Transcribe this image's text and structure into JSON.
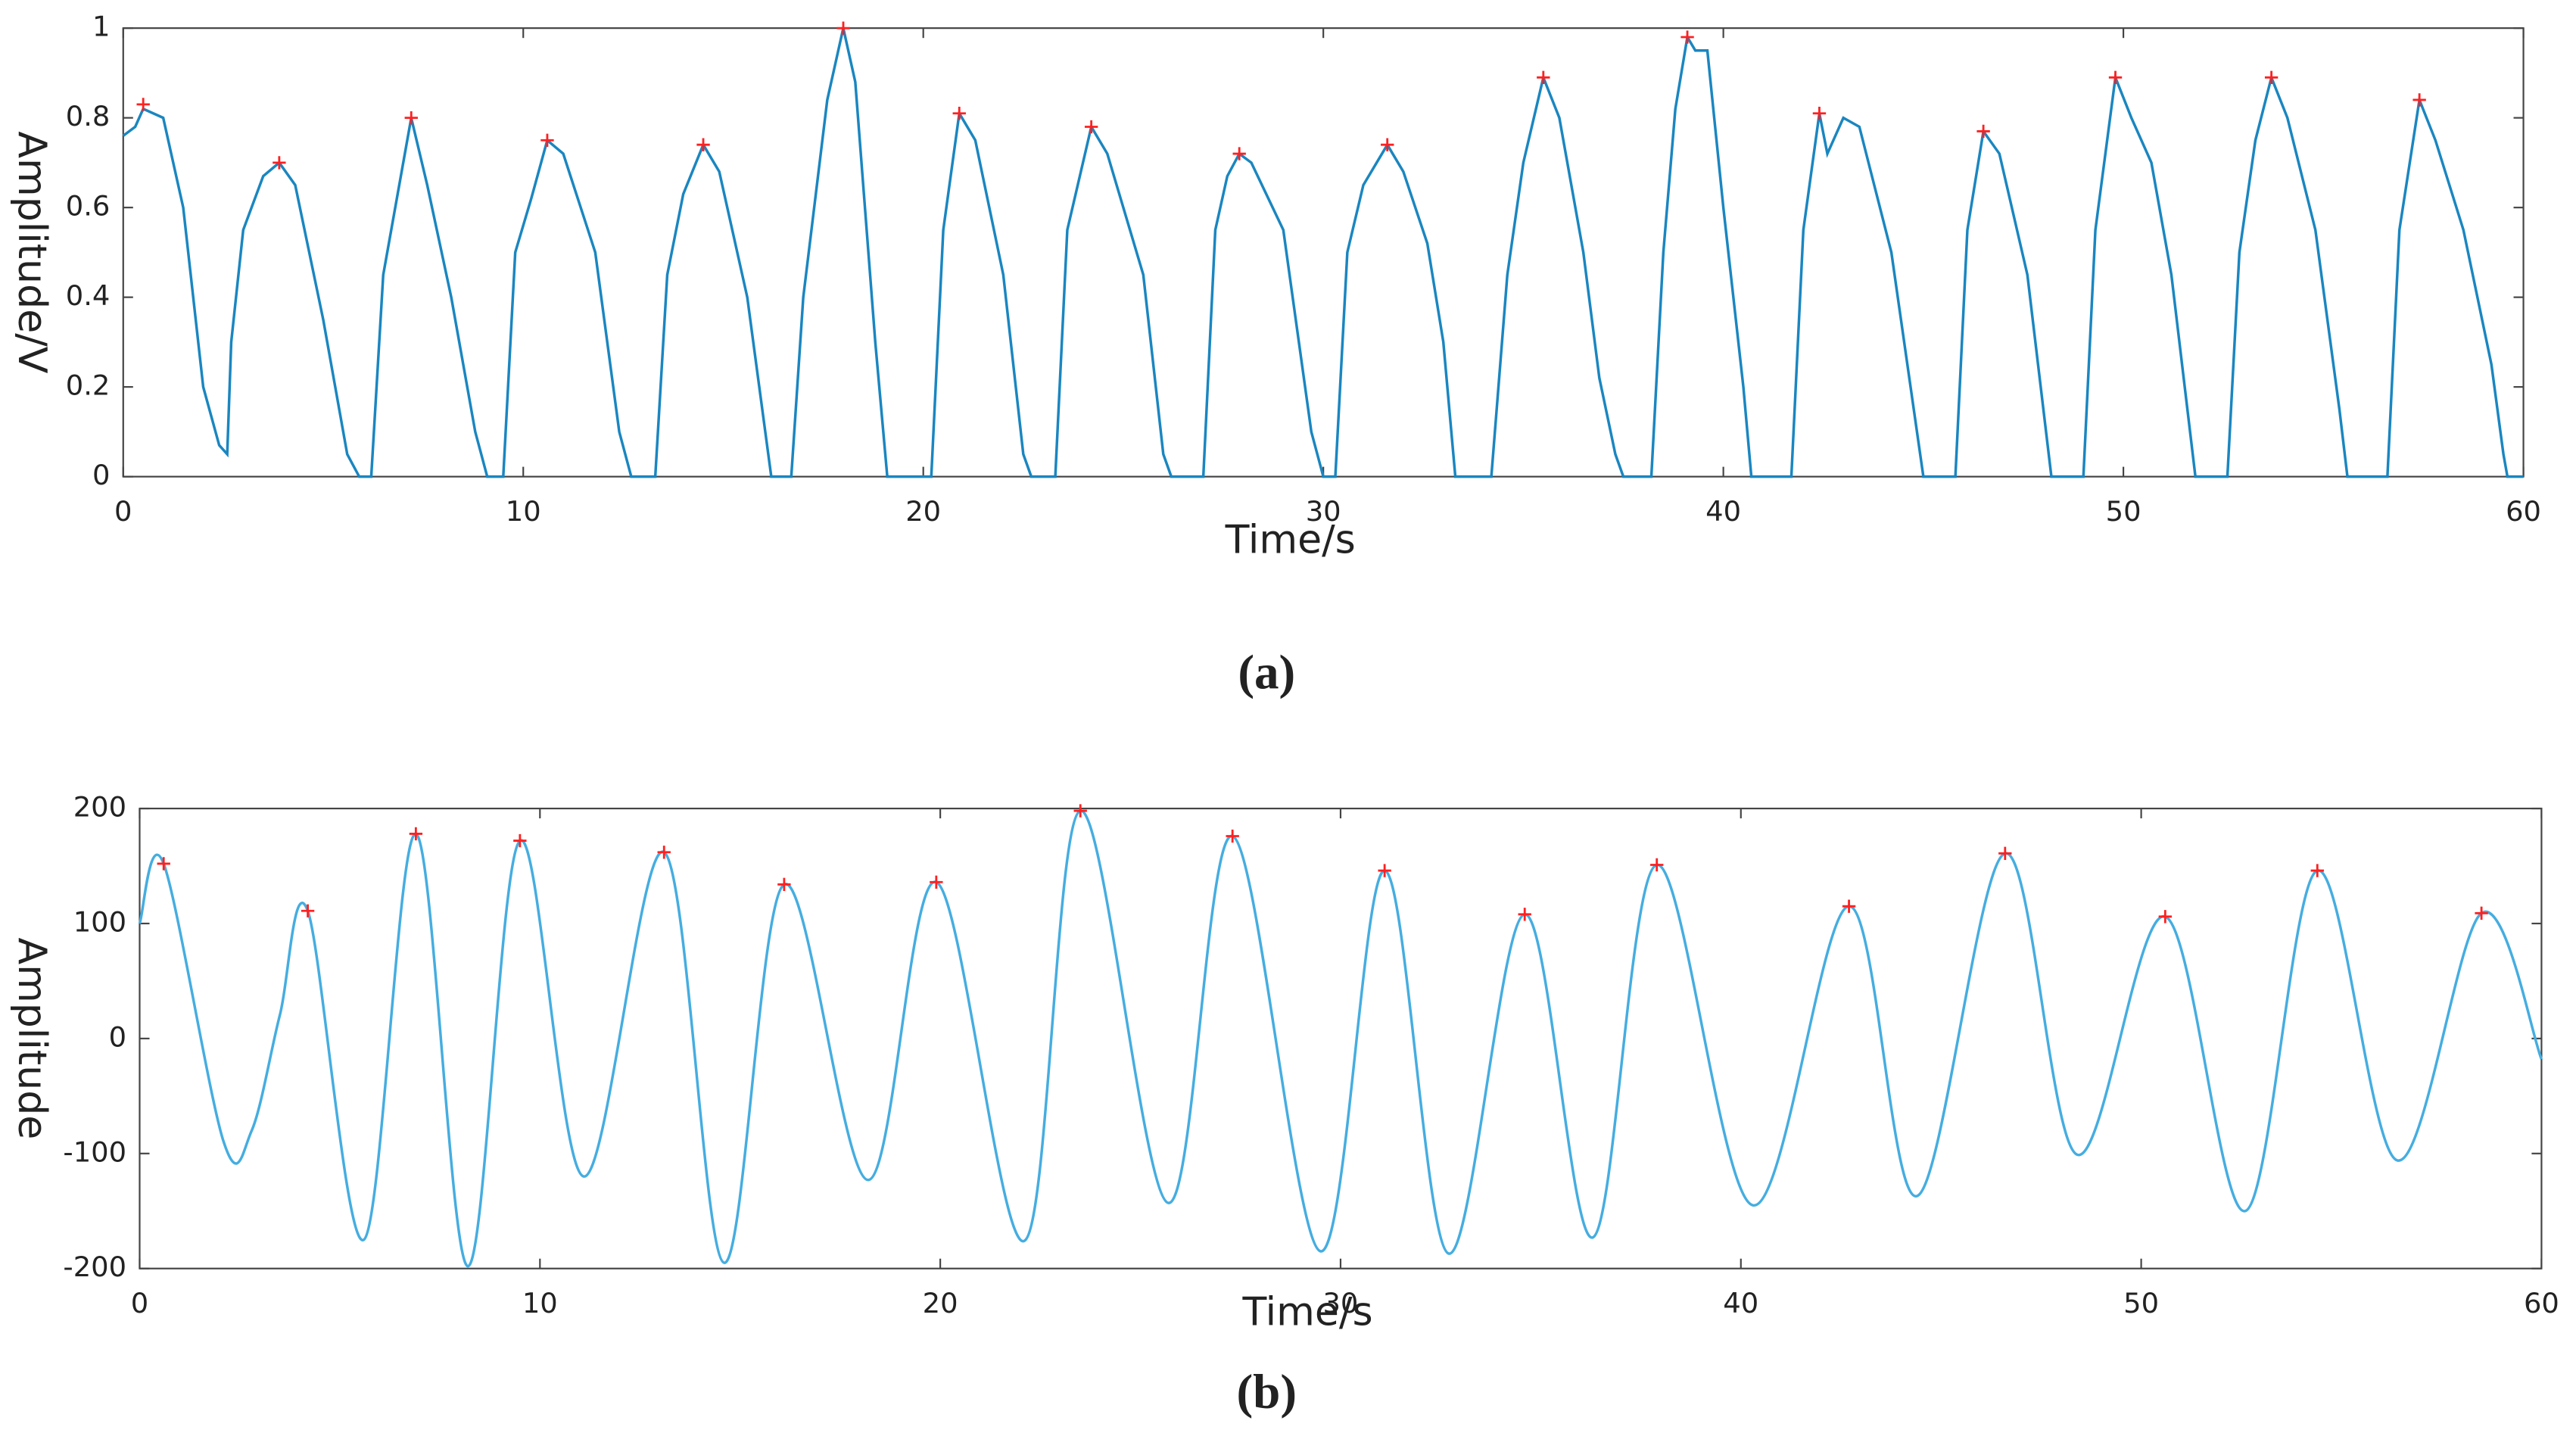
{
  "chart_data": [
    {
      "type": "line",
      "caption": "(a)",
      "xlabel": "Time/s",
      "ylabel": "Amplitude/V",
      "xlim": [
        0,
        60
      ],
      "ylim": [
        0,
        1
      ],
      "xticks": [
        0,
        10,
        20,
        30,
        40,
        50,
        60
      ],
      "yticks": [
        0,
        0.2,
        0.4,
        0.6,
        0.8,
        1
      ],
      "series": [
        {
          "color": "#1a86c0",
          "x": [
            0,
            0.3,
            0.5,
            1.0,
            1.5,
            2.0,
            2.4,
            2.6,
            2.7,
            3.0,
            3.5,
            3.9,
            4.3,
            5.0,
            5.6,
            5.9,
            6.2,
            6.5,
            6.9,
            7.2,
            7.6,
            8.2,
            8.8,
            9.1,
            9.5,
            9.8,
            10.2,
            10.6,
            11.0,
            11.8,
            12.4,
            12.7,
            13.3,
            13.6,
            14.0,
            14.5,
            14.9,
            15.6,
            16.2,
            16.7,
            17.0,
            17.6,
            18.0,
            18.3,
            18.8,
            19.1,
            20.2,
            20.5,
            20.9,
            21.3,
            22.0,
            22.5,
            22.7,
            23.3,
            23.6,
            24.2,
            24.6,
            25.5,
            26.0,
            26.2,
            27.0,
            27.3,
            27.6,
            27.9,
            28.2,
            29.0,
            29.7,
            30.0,
            30.3,
            30.6,
            31.0,
            31.6,
            32.0,
            32.6,
            33.0,
            33.3,
            34.2,
            34.6,
            35.0,
            35.5,
            35.9,
            36.5,
            36.9,
            37.3,
            37.5,
            38.2,
            38.5,
            38.8,
            39.1,
            39.3,
            39.6,
            40.0,
            40.5,
            40.7,
            41.7,
            42.0,
            42.4,
            42.6,
            43.0,
            43.4,
            44.2,
            45.0,
            45.8,
            46.1,
            46.5,
            46.9,
            47.6,
            48.2,
            49.0,
            49.3,
            49.8,
            50.2,
            50.7,
            51.2,
            51.8,
            52.6,
            52.9,
            53.3,
            53.7,
            54.1,
            54.8,
            55.4,
            55.6,
            56.6,
            56.9,
            57.4,
            57.8,
            58.5,
            59.2,
            59.5,
            59.6,
            60.0
          ],
          "values": [
            0.76,
            0.78,
            0.82,
            0.8,
            0.6,
            0.2,
            0.07,
            0.05,
            0.3,
            0.55,
            0.67,
            0.7,
            0.65,
            0.35,
            0.05,
            0,
            0,
            0.45,
            0.65,
            0.8,
            0.65,
            0.4,
            0.1,
            0,
            0,
            0.5,
            0.62,
            0.75,
            0.72,
            0.5,
            0.1,
            0,
            0,
            0.45,
            0.63,
            0.74,
            0.68,
            0.4,
            0,
            0,
            0.4,
            0.84,
            1.0,
            0.88,
            0.3,
            0,
            0,
            0.55,
            0.81,
            0.75,
            0.45,
            0.05,
            0,
            0,
            0.55,
            0.78,
            0.72,
            0.45,
            0.05,
            0,
            0,
            0.55,
            0.67,
            0.72,
            0.7,
            0.55,
            0.1,
            0,
            0,
            0.5,
            0.65,
            0.74,
            0.68,
            0.52,
            0.3,
            0,
            0,
            0.45,
            0.7,
            0.89,
            0.8,
            0.5,
            0.22,
            0.05,
            0,
            0,
            0.5,
            0.82,
            0.98,
            0.95,
            0.95,
            0.6,
            0.2,
            0,
            0,
            0.55,
            0.81,
            0.72,
            0.8,
            0.78,
            0.5,
            0,
            0,
            0.55,
            0.77,
            0.72,
            0.45,
            0,
            0,
            0.55,
            0.89,
            0.8,
            0.7,
            0.45,
            0,
            0,
            0.5,
            0.75,
            0.89,
            0.8,
            0.55,
            0.15,
            0,
            0,
            0.55,
            0.84,
            0.75,
            0.55,
            0.25,
            0.05,
            0,
            0
          ]
        },
        {
          "color": "#ff2020",
          "marker": "+",
          "x": [
            0.5,
            3.9,
            7.2,
            10.6,
            14.5,
            18.0,
            20.9,
            24.2,
            27.9,
            31.6,
            35.5,
            39.1,
            42.4,
            46.5,
            49.8,
            53.7,
            57.4
          ],
          "values": [
            0.83,
            0.7,
            0.8,
            0.75,
            0.74,
            1.0,
            0.81,
            0.78,
            0.72,
            0.74,
            0.89,
            0.98,
            0.81,
            0.77,
            0.89,
            0.89,
            0.84
          ]
        }
      ]
    },
    {
      "type": "line",
      "caption": "(b)",
      "xlabel": "Time/s",
      "ylabel": "Amplitude",
      "smooth": true,
      "xlim": [
        0,
        60
      ],
      "ylim": [
        -200,
        200
      ],
      "xticks": [
        0,
        10,
        20,
        30,
        40,
        50,
        60
      ],
      "yticks": [
        -200,
        -100,
        0,
        100,
        200
      ],
      "series": [
        {
          "color": "#45ade0",
          "x": [
            0,
            0.6,
            2.1,
            2.8,
            3.5,
            4.2,
            5.6,
            6.9,
            8.2,
            9.5,
            11.1,
            13.1,
            14.6,
            16.1,
            18.2,
            19.9,
            22.1,
            23.5,
            25.7,
            27.3,
            29.5,
            31.1,
            32.7,
            34.6,
            36.3,
            37.9,
            40.3,
            42.7,
            44.4,
            46.6,
            48.4,
            50.6,
            52.6,
            54.4,
            56.4,
            58.5,
            60
          ],
          "values": [
            100,
            152,
            -90,
            -80,
            20,
            111,
            -175,
            178,
            -198,
            172,
            -120,
            162,
            -195,
            134,
            -123,
            136,
            -176,
            198,
            -143,
            176,
            -185,
            146,
            -187,
            108,
            -173,
            151,
            -145,
            115,
            -137,
            161,
            -101,
            106,
            -150,
            146,
            -106,
            109,
            -18
          ]
        },
        {
          "color": "#ff2020",
          "marker": "+",
          "x": [
            0.6,
            4.2,
            6.9,
            9.5,
            13.1,
            16.1,
            19.9,
            23.5,
            27.3,
            31.1,
            34.6,
            37.9,
            42.7,
            46.6,
            50.6,
            54.4,
            58.5
          ],
          "values": [
            152,
            111,
            178,
            172,
            162,
            134,
            136,
            198,
            176,
            146,
            108,
            151,
            115,
            161,
            106,
            146,
            109
          ]
        }
      ]
    }
  ]
}
